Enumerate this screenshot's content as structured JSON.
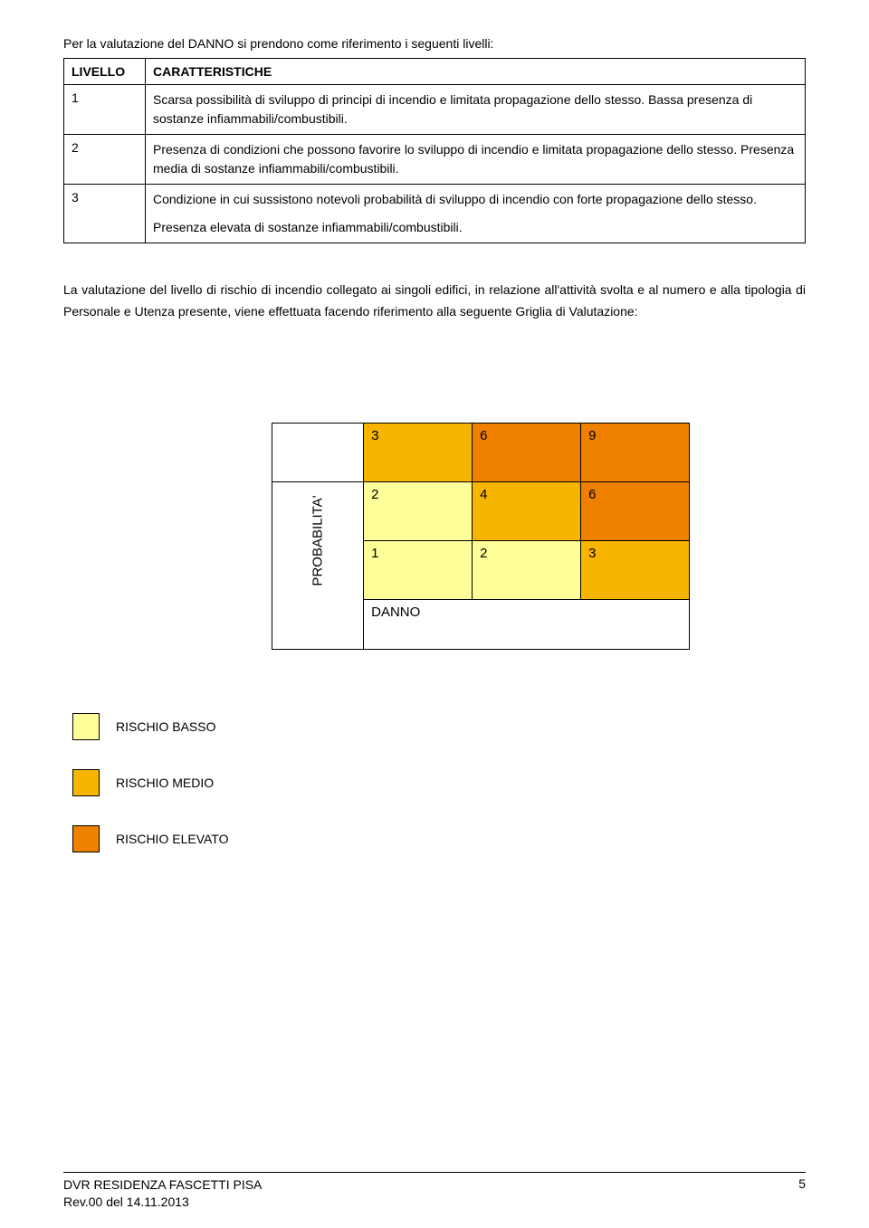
{
  "intro": "Per la valutazione del DANNO si prendono come riferimento i seguenti livelli:",
  "levels_table": {
    "headers": [
      "LIVELLO",
      "CARATTERISTICHE"
    ],
    "rows": [
      {
        "level": "1",
        "desc": [
          "Scarsa possibilità di sviluppo di principi di incendio e limitata propagazione dello stesso. Bassa presenza di sostanze infiammabili/combustibili."
        ]
      },
      {
        "level": "2",
        "desc": [
          "Presenza di condizioni che possono favorire lo sviluppo di incendio e limitata propagazione dello stesso. Presenza media di sostanze infiammabili/combustibili."
        ]
      },
      {
        "level": "3",
        "desc": [
          "Condizione in cui sussistono notevoli probabilità di sviluppo di incendio con forte propagazione dello stesso.",
          "Presenza elevata di sostanze infiammabili/combustibili."
        ]
      }
    ]
  },
  "paragraph": "La valutazione del livello di rischio di incendio collegato ai singoli edifici, in relazione all'attività svolta e al numero e alla tipologia di Personale e Utenza presente, viene effettuata facendo riferimento alla seguente Griglia di Valutazione:",
  "matrix": {
    "ylabel": "PROBABILITA'",
    "xlabel": "DANNO",
    "cells": [
      [
        {
          "v": "3",
          "c": "#f7b500"
        },
        {
          "v": "6",
          "c": "#f08000"
        },
        {
          "v": "9",
          "c": "#f08000"
        }
      ],
      [
        {
          "v": "2",
          "c": "#ffff99"
        },
        {
          "v": "4",
          "c": "#f7b500"
        },
        {
          "v": "6",
          "c": "#f08000"
        }
      ],
      [
        {
          "v": "1",
          "c": "#ffff99"
        },
        {
          "v": "2",
          "c": "#ffff99"
        },
        {
          "v": "3",
          "c": "#f7b500"
        }
      ]
    ],
    "colors": {
      "low": "#ffff99",
      "medium": "#f7b500",
      "high": "#f08000"
    }
  },
  "legend": [
    {
      "label": "RISCHIO BASSO",
      "color": "#ffff99"
    },
    {
      "label": "RISCHIO MEDIO",
      "color": "#f7b500"
    },
    {
      "label": "RISCHIO ELEVATO",
      "color": "#f08000"
    }
  ],
  "footer": {
    "line1": "DVR RESIDENZA FASCETTI PISA",
    "line2": "Rev.00 del 14.11.2013",
    "page": "5"
  }
}
